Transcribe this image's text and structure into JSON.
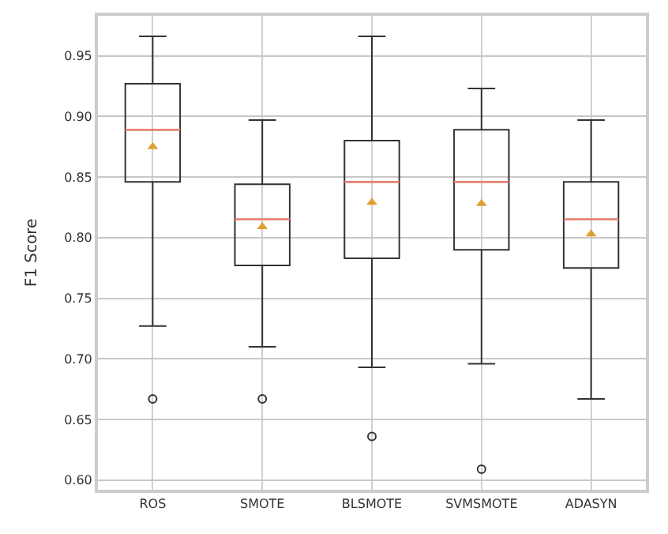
{
  "chart_data": {
    "type": "box",
    "ylabel": "F1 Score",
    "categories": [
      "ROS",
      "SMOTE",
      "BLSMOTE",
      "SVMSMOTE",
      "ADASYN"
    ],
    "boxes": [
      {
        "low": 0.727,
        "q1": 0.846,
        "median": 0.889,
        "q3": 0.927,
        "high": 0.966,
        "mean": 0.875,
        "outliers": [
          0.667
        ]
      },
      {
        "low": 0.71,
        "q1": 0.777,
        "median": 0.815,
        "q3": 0.844,
        "high": 0.897,
        "mean": 0.809,
        "outliers": [
          0.667
        ]
      },
      {
        "low": 0.693,
        "q1": 0.783,
        "median": 0.846,
        "q3": 0.88,
        "high": 0.966,
        "mean": 0.829,
        "outliers": [
          0.636
        ]
      },
      {
        "low": 0.696,
        "q1": 0.79,
        "median": 0.846,
        "q3": 0.889,
        "high": 0.923,
        "mean": 0.828,
        "outliers": [
          0.609
        ]
      },
      {
        "low": 0.667,
        "q1": 0.775,
        "median": 0.815,
        "q3": 0.846,
        "high": 0.897,
        "mean": 0.803
      }
    ],
    "color": "#333333",
    "ylim": [
      0.592,
      0.983
    ],
    "yticks": [
      {
        "value": 0.6,
        "label": "0.60"
      },
      0.65,
      {
        "value": 0.7,
        "label": "0.70"
      },
      0.75,
      {
        "value": 0.8,
        "label": "0.80"
      },
      0.85,
      {
        "value": 0.9,
        "label": "0.90"
      },
      0.95
    ],
    "grid": true
  }
}
